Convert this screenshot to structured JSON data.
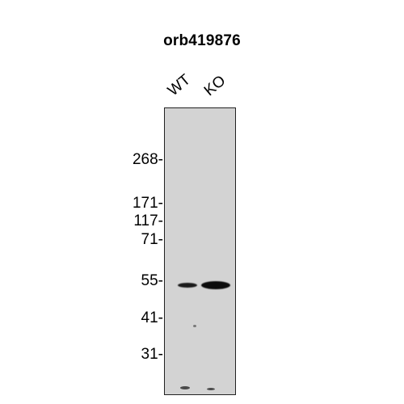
{
  "figure": {
    "title": "orb419876",
    "lanes": [
      "WT",
      "KO"
    ],
    "markers": [
      "268-",
      "171-",
      "117-",
      "71-",
      "55-",
      "41-",
      "31-"
    ]
  }
}
